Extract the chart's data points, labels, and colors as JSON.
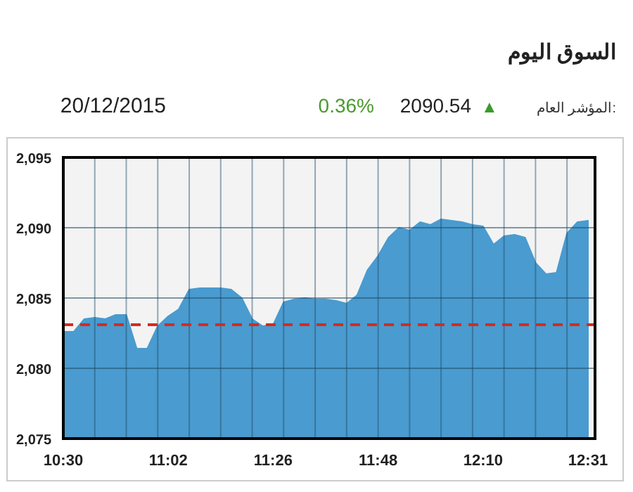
{
  "chart_data": {
    "type": "area",
    "title": "السوق اليوم",
    "annotations": [
      "المؤشر العام:",
      "▲",
      "2090.54",
      "0.36%",
      "20/12/2015"
    ],
    "categories": [
      "10:30",
      null,
      null,
      null,
      null,
      null,
      null,
      null,
      null,
      null,
      "11:02",
      null,
      null,
      null,
      null,
      null,
      null,
      null,
      null,
      null,
      "11:26",
      null,
      null,
      null,
      null,
      null,
      null,
      null,
      null,
      null,
      "11:48",
      null,
      null,
      null,
      null,
      null,
      null,
      null,
      null,
      null,
      "12:10",
      null,
      null,
      null,
      null,
      null,
      null,
      null,
      null,
      null,
      "12:31"
    ],
    "series": [
      {
        "color": "#4a9bcf",
        "values": [
          2082.6,
          2082.6,
          2083.5,
          2083.6,
          2083.5,
          2083.8,
          2083.8,
          2081.4,
          2081.4,
          2083.0,
          2083.7,
          2084.2,
          2085.6,
          2085.7,
          2085.7,
          2085.7,
          2085.6,
          2085.0,
          2083.5,
          2083.0,
          2083.1,
          2084.7,
          2084.9,
          2085.0,
          2084.9,
          2084.9,
          2084.8,
          2084.6,
          2085.2,
          2087.0,
          2088.0,
          2089.3,
          2090.0,
          2089.8,
          2090.4,
          2090.2,
          2090.6,
          2090.5,
          2090.4,
          2090.2,
          2090.1,
          2088.8,
          2089.4,
          2089.5,
          2089.3,
          2087.5,
          2086.7,
          2086.8,
          2089.6,
          2090.4,
          2090.5
        ]
      }
    ],
    "ylim": [
      2075,
      2095
    ],
    "yticks": [
      {
        "value": 2075,
        "label": "2,075"
      },
      {
        "value": 2080,
        "label": "2,080"
      },
      {
        "value": 2085,
        "label": "2,085"
      },
      {
        "value": 2090,
        "label": "2,090"
      },
      {
        "value": 2095,
        "label": "2,095"
      }
    ],
    "ref_lines": [
      {
        "axis": "y",
        "value": 2083.1,
        "color": "#d62a1e",
        "line_style": "dashed"
      }
    ],
    "grid": true
  }
}
